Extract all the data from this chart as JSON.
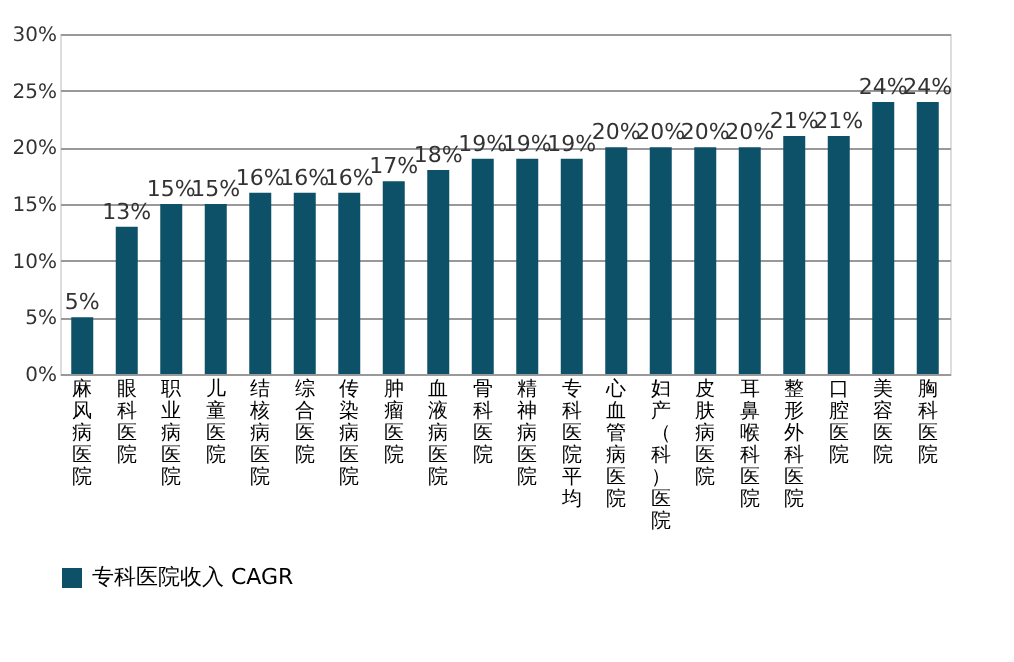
{
  "chart_data": {
    "type": "bar",
    "categories": [
      "麻风病医院",
      "眼科医院",
      "职业病医院",
      "儿童医院",
      "结核病医院",
      "综合医院",
      "传染病医院",
      "肿瘤医院",
      "血液病医院",
      "骨科医院",
      "精神病医院",
      "专科医院平均",
      "心血管病医院",
      "妇产（科）医院",
      "皮肤病医院",
      "耳鼻喉科医院",
      "整形外科医院",
      "口腔医院",
      "美容医院",
      "胸科医院"
    ],
    "series": [
      {
        "name": "专科医院收入 CAGR",
        "color": "#0d5169",
        "values": [
          5,
          13,
          15,
          15,
          16,
          16,
          16,
          17,
          18,
          19,
          19,
          19,
          20,
          20,
          20,
          20,
          21,
          21,
          24,
          24
        ]
      }
    ],
    "ylim": [
      0,
      30
    ],
    "yticks": [
      {
        "value": 0,
        "label": "0%"
      },
      {
        "value": 5,
        "label": "5%"
      },
      {
        "value": 10,
        "label": "10%"
      },
      {
        "value": 15,
        "label": "15%"
      },
      {
        "value": 20,
        "label": "20%"
      },
      {
        "value": 25,
        "label": "25%"
      },
      {
        "value": 30,
        "label": "30%"
      }
    ],
    "value_labels": [
      "5%",
      "13%",
      "15%",
      "15%",
      "16%",
      "16%",
      "16%",
      "17%",
      "18%",
      "19%",
      "19%",
      "19%",
      "20%",
      "20%",
      "20%",
      "20%",
      "21%",
      "21%",
      "24%",
      "24%"
    ],
    "grid": "y",
    "legend": "bottom"
  }
}
